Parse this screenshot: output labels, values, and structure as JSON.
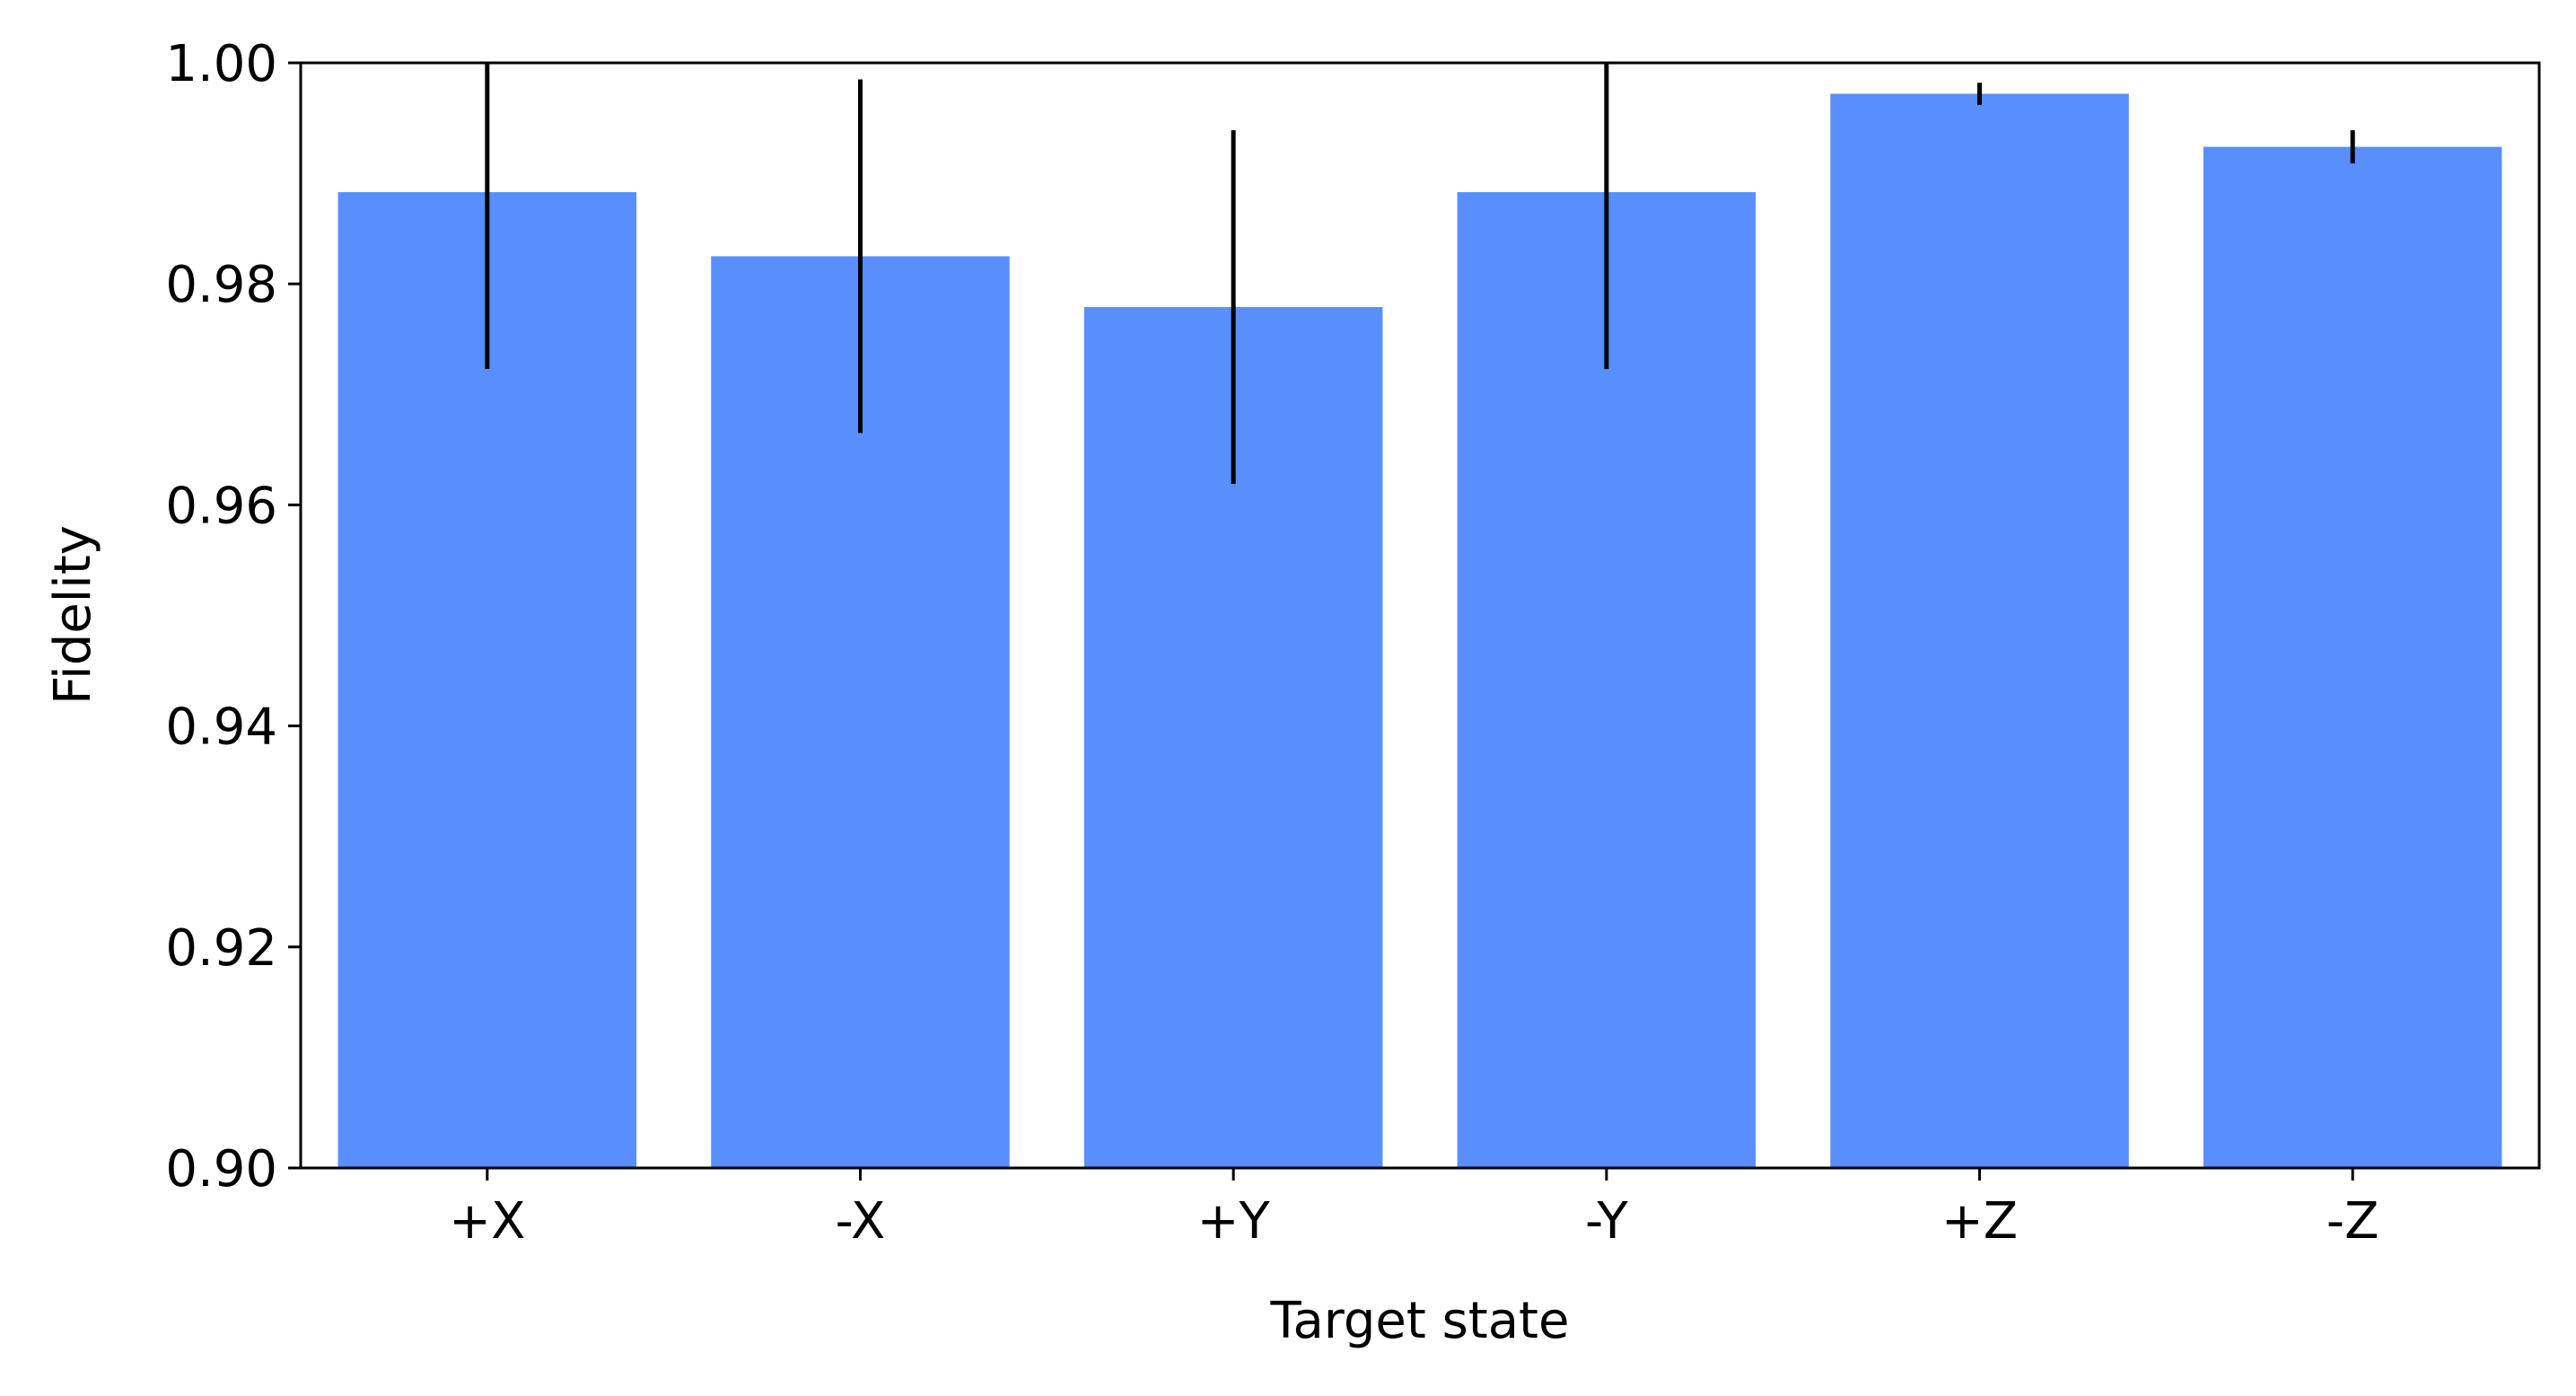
{
  "chart_data": {
    "type": "bar",
    "xlabel": "Target state",
    "ylabel": "Fidelity",
    "categories": [
      "+X",
      "-X",
      "+Y",
      "-Y",
      "+Z",
      "-Z"
    ],
    "values": [
      0.9883,
      0.9825,
      0.9779,
      0.9883,
      0.9972,
      0.9924
    ],
    "errors": [
      0.016,
      0.016,
      0.016,
      0.016,
      0.001,
      0.0015
    ],
    "color": "#588ffc",
    "error_color": "#000000",
    "ylim": [
      0.9,
      1.0
    ],
    "yticks": [
      {
        "value": 0.9,
        "label": "0.90"
      },
      {
        "value": 0.92,
        "label": "0.92"
      },
      {
        "value": 0.94,
        "label": "0.94"
      },
      {
        "value": 0.96,
        "label": "0.96"
      },
      {
        "value": 0.98,
        "label": "0.98"
      },
      {
        "value": 1.0,
        "label": "1.00"
      }
    ],
    "grid": false
  }
}
